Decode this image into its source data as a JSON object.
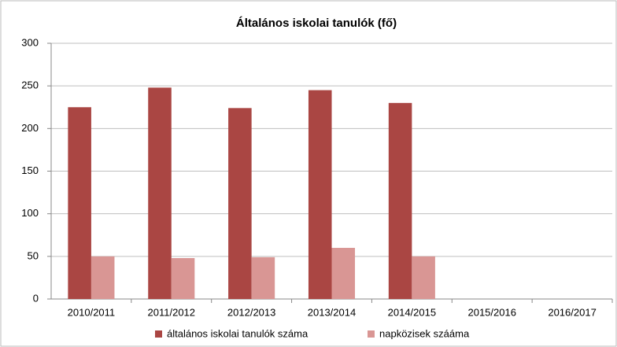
{
  "chart_data": {
    "type": "bar",
    "title": "Általános iskolai tanulók (fő)",
    "categories": [
      "2010/2011",
      "2011/2012",
      "2012/2013",
      "2013/2014",
      "2014/2015",
      "2015/2016",
      "2016/2017"
    ],
    "series": [
      {
        "name": "általános iskolai tanulók száma",
        "color": "#aa4643",
        "values": [
          225,
          248,
          224,
          245,
          230,
          null,
          null
        ]
      },
      {
        "name": "napközisek szááma",
        "color": "#d99694",
        "values": [
          50,
          48,
          49,
          60,
          50,
          null,
          null
        ]
      }
    ],
    "ylim": [
      0,
      300
    ],
    "yticks": [
      0,
      50,
      100,
      150,
      200,
      250,
      300
    ],
    "grid": true,
    "legend": "bottom"
  }
}
